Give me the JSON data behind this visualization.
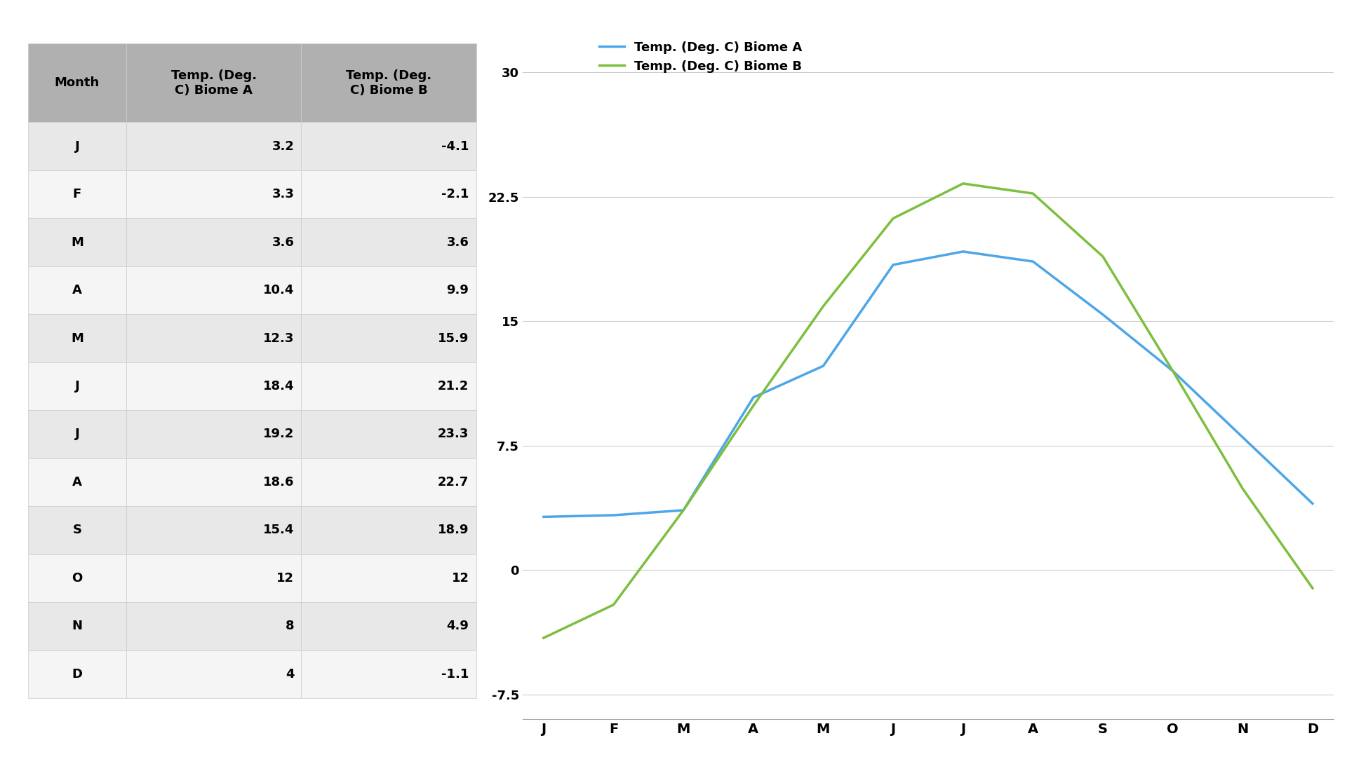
{
  "months": [
    "J",
    "F",
    "M",
    "A",
    "M",
    "J",
    "J",
    "A",
    "S",
    "O",
    "N",
    "D"
  ],
  "biome_a": [
    3.2,
    3.3,
    3.6,
    10.4,
    12.3,
    18.4,
    19.2,
    18.6,
    15.4,
    12.0,
    8.0,
    4.0
  ],
  "biome_b": [
    -4.1,
    -2.1,
    3.6,
    9.9,
    15.9,
    21.2,
    23.3,
    22.7,
    18.9,
    12.0,
    4.9,
    -1.1
  ],
  "col_headers": [
    "Month",
    "Temp. (Deg.\nC) Biome A",
    "Temp. (Deg.\nC) Biome B"
  ],
  "legend_a": "Temp. (Deg. C) Biome A",
  "legend_b": "Temp. (Deg. C) Biome B",
  "color_a": "#4da6e8",
  "color_b": "#7dbf3e",
  "yticks": [
    -7.5,
    0,
    7.5,
    15,
    22.5,
    30
  ],
  "table_bg_header": "#b0b0b0",
  "table_bg_odd": "#e8e8e8",
  "table_bg_even": "#f5f5f5"
}
